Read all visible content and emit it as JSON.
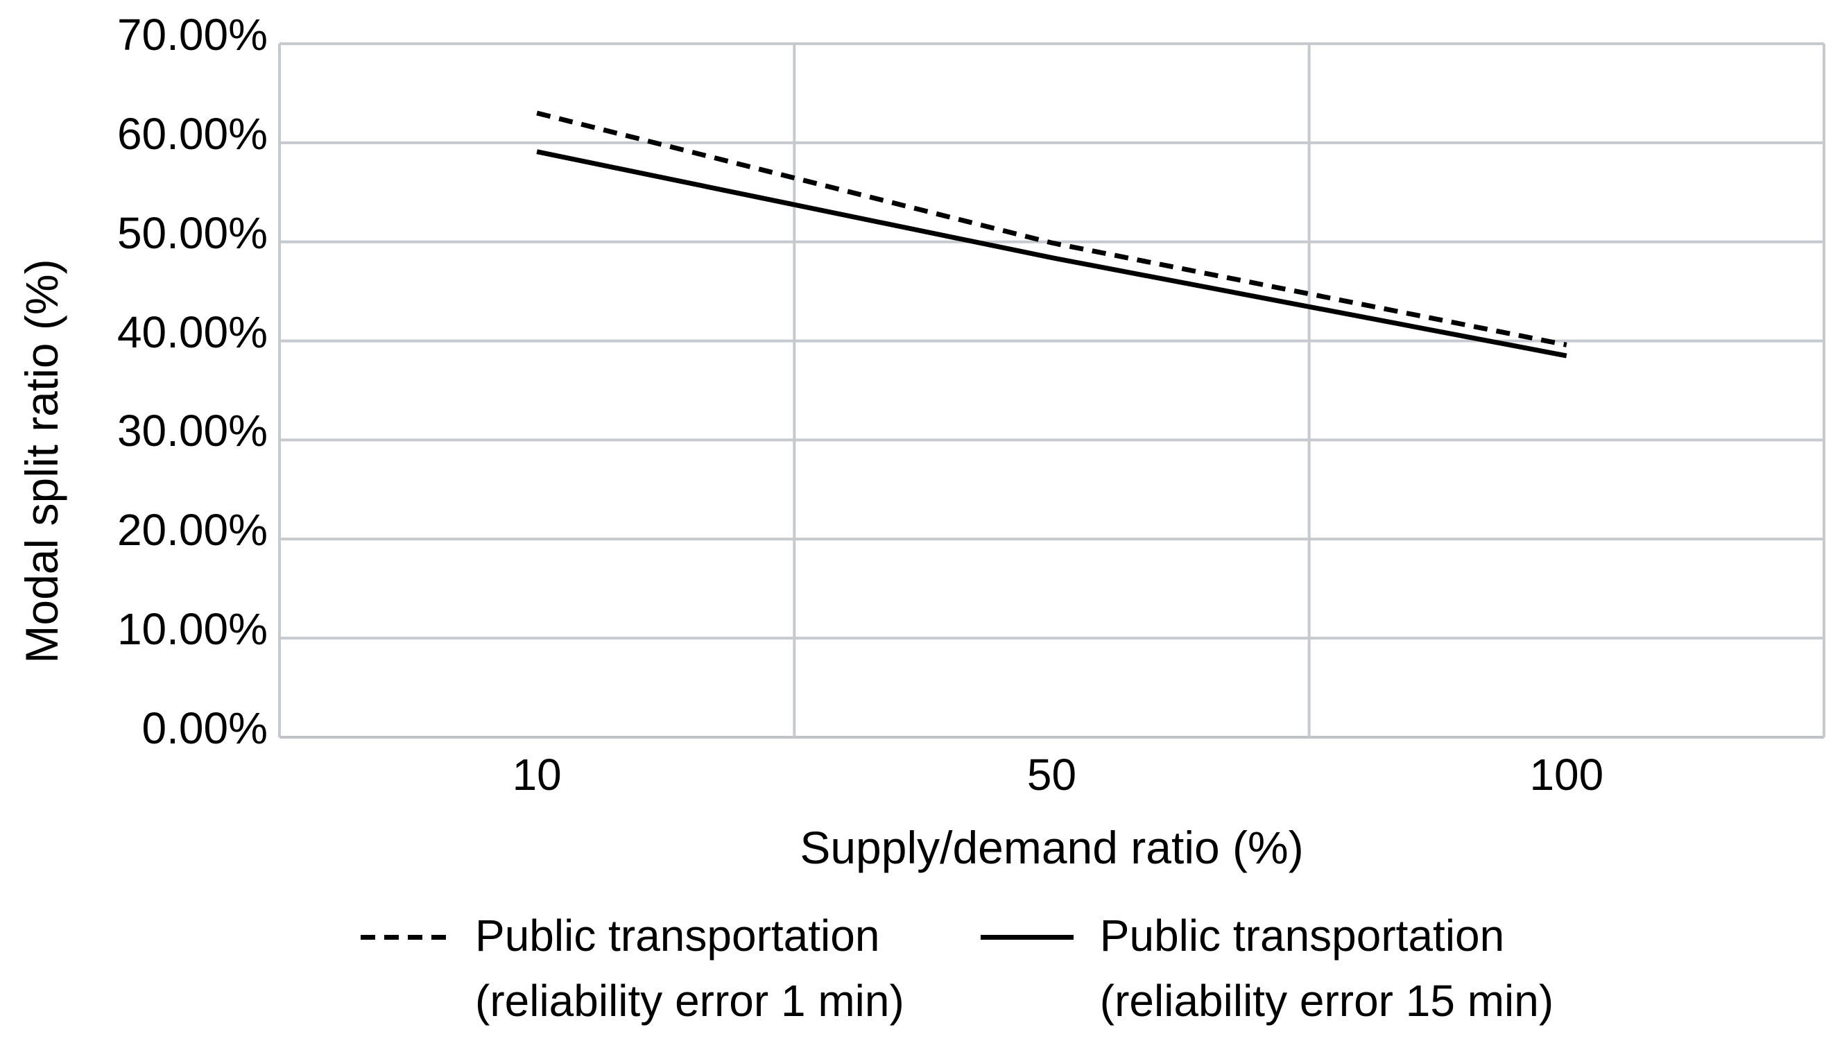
{
  "chart_data": {
    "type": "line",
    "title": "",
    "xlabel": "Supply/demand ratio (%)",
    "ylabel": "Modal split ratio (%)",
    "categories": [
      "10",
      "50",
      "100"
    ],
    "y_ticks": [
      "70.00%",
      "60.00%",
      "50.00%",
      "40.00%",
      "30.00%",
      "20.00%",
      "10.00%",
      "0.00%"
    ],
    "ylim": [
      0,
      70
    ],
    "grid": true,
    "legend_position": "bottom",
    "series": [
      {
        "name": "Public transportation (reliability error 1 min)",
        "label_lines": [
          "Public transportation",
          "(reliability error 1 min)"
        ],
        "style": "dashed",
        "color": "#000000",
        "values": [
          63.0,
          49.9,
          39.6
        ]
      },
      {
        "name": "Public transportation (reliability error 15 min)",
        "label_lines": [
          "Public transportation",
          "(reliability error 15 min)"
        ],
        "style": "solid",
        "color": "#000000",
        "values": [
          59.1,
          48.4,
          38.5
        ]
      }
    ],
    "colors": {
      "gridline": "#c6c9cd",
      "axis_line": "#bfc2c6",
      "series_line": "#000000",
      "text": "#000000",
      "background": "#ffffff"
    }
  }
}
